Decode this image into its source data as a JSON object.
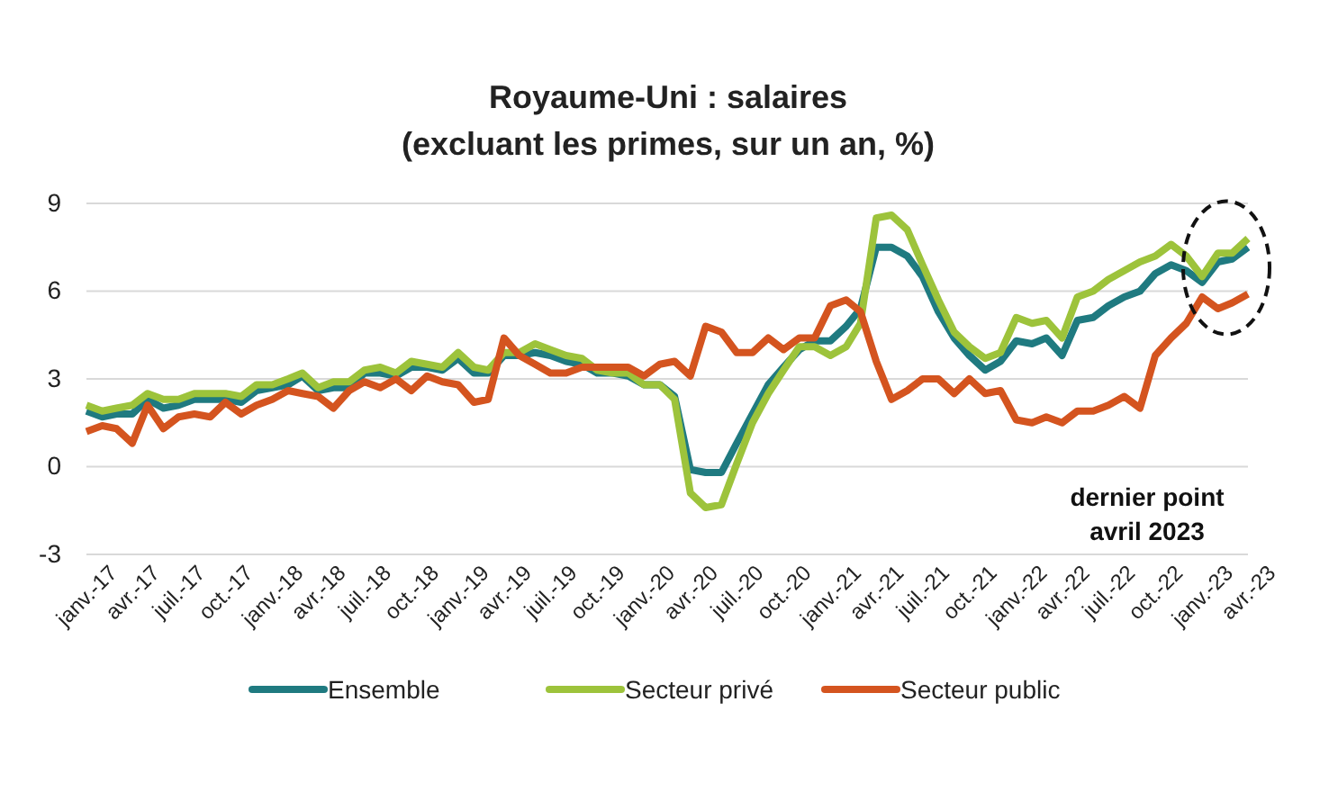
{
  "chart_data": {
    "type": "line",
    "title": "Royaume-Uni : salaires\n(excluant les primes, sur un an, %)",
    "x": [
      "2017-01",
      "2017-02",
      "2017-03",
      "2017-04",
      "2017-05",
      "2017-06",
      "2017-07",
      "2017-08",
      "2017-09",
      "2017-10",
      "2017-11",
      "2017-12",
      "2018-01",
      "2018-02",
      "2018-03",
      "2018-04",
      "2018-05",
      "2018-06",
      "2018-07",
      "2018-08",
      "2018-09",
      "2018-10",
      "2018-11",
      "2018-12",
      "2019-01",
      "2019-02",
      "2019-03",
      "2019-04",
      "2019-05",
      "2019-06",
      "2019-07",
      "2019-08",
      "2019-09",
      "2019-10",
      "2019-11",
      "2019-12",
      "2020-01",
      "2020-02",
      "2020-03",
      "2020-04",
      "2020-05",
      "2020-06",
      "2020-07",
      "2020-08",
      "2020-09",
      "2020-10",
      "2020-11",
      "2020-12",
      "2021-01",
      "2021-02",
      "2021-03",
      "2021-04",
      "2021-05",
      "2021-06",
      "2021-07",
      "2021-08",
      "2021-09",
      "2021-10",
      "2021-11",
      "2021-12",
      "2022-01",
      "2022-02",
      "2022-03",
      "2022-04",
      "2022-05",
      "2022-06",
      "2022-07",
      "2022-08",
      "2022-09",
      "2022-10",
      "2022-11",
      "2022-12",
      "2023-01",
      "2023-02",
      "2023-03",
      "2023-04"
    ],
    "series": [
      {
        "name": "Ensemble",
        "color": "#1f7a80",
        "values": [
          1.9,
          1.7,
          1.8,
          1.8,
          2.3,
          2.0,
          2.1,
          2.3,
          2.3,
          2.3,
          2.2,
          2.6,
          2.7,
          2.8,
          3.1,
          2.6,
          2.7,
          2.7,
          3.2,
          3.2,
          3.1,
          3.4,
          3.4,
          3.3,
          3.7,
          3.2,
          3.2,
          3.8,
          3.8,
          3.9,
          3.8,
          3.6,
          3.5,
          3.2,
          3.2,
          3.1,
          2.8,
          2.8,
          2.4,
          -0.1,
          -0.2,
          -0.2,
          0.8,
          1.8,
          2.8,
          3.4,
          4.0,
          4.3,
          4.3,
          4.8,
          5.4,
          7.5,
          7.5,
          7.2,
          6.5,
          5.3,
          4.4,
          3.8,
          3.3,
          3.6,
          4.3,
          4.2,
          4.4,
          3.8,
          5.0,
          5.1,
          5.5,
          5.8,
          6.0,
          6.6,
          6.9,
          6.7,
          6.3,
          7.0,
          7.1,
          7.5
        ]
      },
      {
        "name": "Secteur privé",
        "color": "#9dc33b",
        "values": [
          2.1,
          1.9,
          2.0,
          2.1,
          2.5,
          2.3,
          2.3,
          2.5,
          2.5,
          2.5,
          2.4,
          2.8,
          2.8,
          3.0,
          3.2,
          2.7,
          2.9,
          2.9,
          3.3,
          3.4,
          3.2,
          3.6,
          3.5,
          3.4,
          3.9,
          3.4,
          3.3,
          3.9,
          3.9,
          4.2,
          4.0,
          3.8,
          3.7,
          3.3,
          3.2,
          3.2,
          2.8,
          2.8,
          2.3,
          -0.9,
          -1.4,
          -1.3,
          0.1,
          1.5,
          2.5,
          3.3,
          4.1,
          4.1,
          3.8,
          4.1,
          4.9,
          8.5,
          8.6,
          8.1,
          6.9,
          5.7,
          4.6,
          4.1,
          3.7,
          3.9,
          5.1,
          4.9,
          5.0,
          4.4,
          5.8,
          6.0,
          6.4,
          6.7,
          7.0,
          7.2,
          7.6,
          7.2,
          6.5,
          7.3,
          7.3,
          7.8
        ]
      },
      {
        "name": "Secteur public",
        "color": "#d4541f",
        "values": [
          1.2,
          1.4,
          1.3,
          0.8,
          2.1,
          1.3,
          1.7,
          1.8,
          1.7,
          2.2,
          1.8,
          2.1,
          2.3,
          2.6,
          2.5,
          2.4,
          2.0,
          2.6,
          2.9,
          2.7,
          3.0,
          2.6,
          3.1,
          2.9,
          2.8,
          2.2,
          2.3,
          4.4,
          3.8,
          3.5,
          3.2,
          3.2,
          3.4,
          3.4,
          3.4,
          3.4,
          3.1,
          3.5,
          3.6,
          3.1,
          4.8,
          4.6,
          3.9,
          3.9,
          4.4,
          4.0,
          4.4,
          4.4,
          5.5,
          5.7,
          5.3,
          3.6,
          2.3,
          2.6,
          3.0,
          3.0,
          2.5,
          3.0,
          2.5,
          2.6,
          1.6,
          1.5,
          1.7,
          1.5,
          1.9,
          1.9,
          2.1,
          2.4,
          2.0,
          3.8,
          4.4,
          4.9,
          5.8,
          5.4,
          5.6,
          5.9
        ]
      }
    ],
    "xlim": [
      "2017-01",
      "2023-04"
    ],
    "xticks": [
      {
        "value": "2017-01",
        "label": "janv.-17"
      },
      {
        "value": "2017-04",
        "label": "avr.-17"
      },
      {
        "value": "2017-07",
        "label": "juil.-17"
      },
      {
        "value": "2017-10",
        "label": "oct.-17"
      },
      {
        "value": "2018-01",
        "label": "janv.-18"
      },
      {
        "value": "2018-04",
        "label": "avr.-18"
      },
      {
        "value": "2018-07",
        "label": "juil.-18"
      },
      {
        "value": "2018-10",
        "label": "oct.-18"
      },
      {
        "value": "2019-01",
        "label": "janv.-19"
      },
      {
        "value": "2019-04",
        "label": "avr.-19"
      },
      {
        "value": "2019-07",
        "label": "juil.-19"
      },
      {
        "value": "2019-10",
        "label": "oct.-19"
      },
      {
        "value": "2020-01",
        "label": "janv.-20"
      },
      {
        "value": "2020-04",
        "label": "avr.-20"
      },
      {
        "value": "2020-07",
        "label": "juil.-20"
      },
      {
        "value": "2020-10",
        "label": "oct.-20"
      },
      {
        "value": "2021-01",
        "label": "janv.-21"
      },
      {
        "value": "2021-04",
        "label": "avr.-21"
      },
      {
        "value": "2021-07",
        "label": "juil.-21"
      },
      {
        "value": "2021-10",
        "label": "oct.-21"
      },
      {
        "value": "2022-01",
        "label": "janv.-22"
      },
      {
        "value": "2022-04",
        "label": "avr.-22"
      },
      {
        "value": "2022-07",
        "label": "juil.-22"
      },
      {
        "value": "2022-10",
        "label": "oct.-22"
      },
      {
        "value": "2023-01",
        "label": "janv.-23"
      },
      {
        "value": "2023-04",
        "label": "avr.-23"
      }
    ],
    "ylim": [
      -3,
      9
    ],
    "yticks": [
      -3,
      0,
      3,
      6,
      9
    ],
    "grid": "y",
    "legend": "bottom",
    "line_style": "solid",
    "annotations": [
      "dernier point\navril 2023"
    ]
  }
}
